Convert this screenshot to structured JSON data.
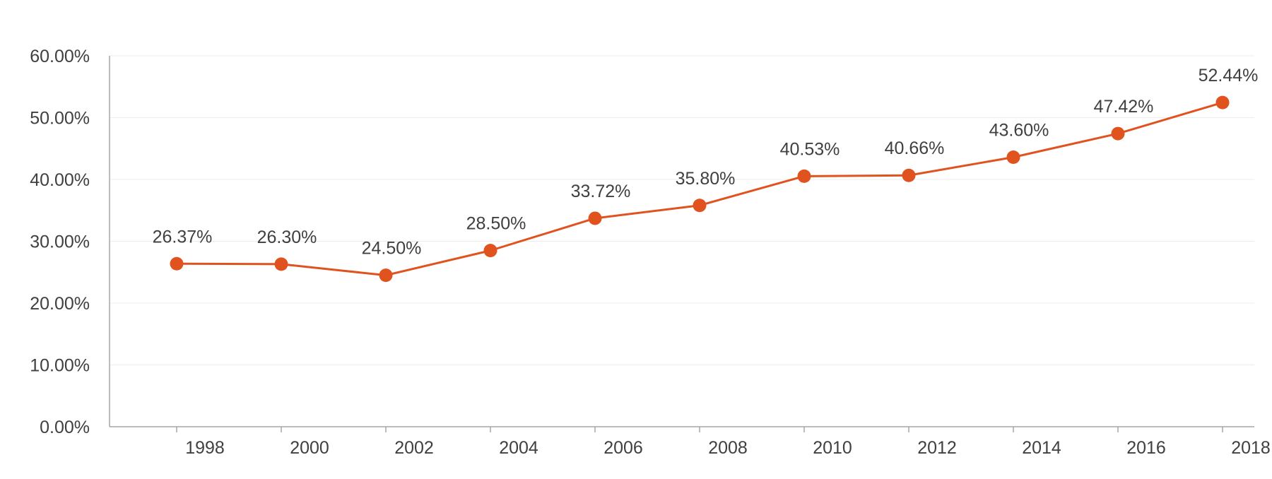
{
  "chart_data": {
    "type": "line",
    "categories": [
      "1998",
      "2000",
      "2002",
      "2004",
      "2006",
      "2008",
      "2010",
      "2012",
      "2014",
      "2016",
      "2018"
    ],
    "series": [
      {
        "values": [
          26.37,
          26.3,
          24.5,
          28.5,
          33.72,
          35.8,
          40.53,
          40.66,
          43.6,
          47.42,
          52.44
        ],
        "color": "#e0531f"
      }
    ],
    "data_labels": [
      "26.37%",
      "26.30%",
      "24.50%",
      "28.50%",
      "33.72%",
      "35.80%",
      "40.53%",
      "40.66%",
      "43.60%",
      "47.42%",
      "52.44%"
    ],
    "y_ticks": [
      {
        "value": 0,
        "label": "0.00%"
      },
      {
        "value": 10,
        "label": "10.00%"
      },
      {
        "value": 20,
        "label": "20.00%"
      },
      {
        "value": 30,
        "label": "30.00%"
      },
      {
        "value": 40,
        "label": "40.00%"
      },
      {
        "value": 50,
        "label": "50.00%"
      },
      {
        "value": 60,
        "label": "60.00%"
      }
    ],
    "ylim": [
      0,
      60
    ],
    "title": "",
    "xlabel": "",
    "ylabel": "",
    "grid": true,
    "legend": "none",
    "colors": {
      "line": "#e0531f",
      "grid": "#ececec",
      "axis": "#a6a6a6",
      "text": "#404040"
    }
  }
}
